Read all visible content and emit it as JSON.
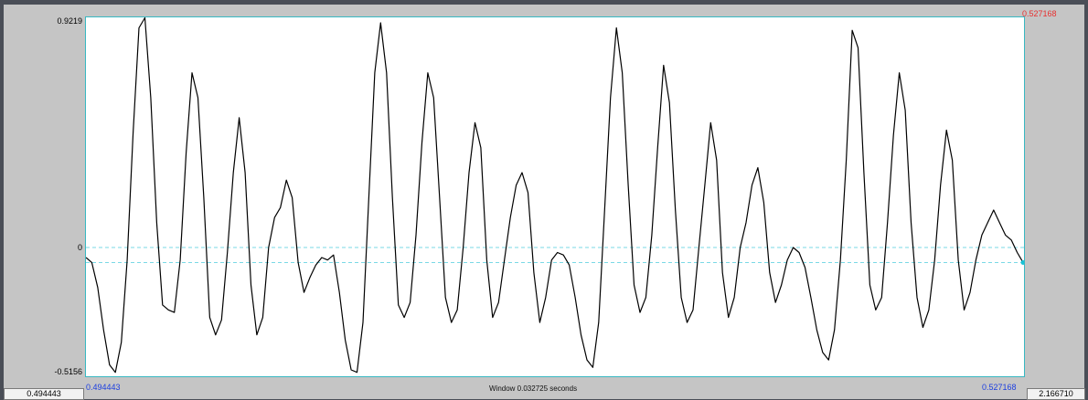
{
  "axis": {
    "y_top": "0.9219",
    "y_zero": "0",
    "y_bottom": "-0.5156"
  },
  "cursor": {
    "value": "0.527168",
    "color": "#e83030",
    "dot_color": "#19c2d6"
  },
  "selection": {
    "start": "0.494443",
    "end": "0.527168"
  },
  "window": {
    "label": "Window 0.032725 seconds"
  },
  "visible_range": {
    "start": "0.494443",
    "end": "2.166710"
  },
  "colors": {
    "background": "#4a4e57",
    "frame": "#c5c5c5",
    "plot_border": "#38b8c2",
    "waveform": "#000000",
    "zero_line": "#7ad9e6",
    "selection_text": "#1d3fe0"
  },
  "waveform": {
    "y_range": [
      -0.5156,
      0.9219
    ],
    "samples": [
      -0.04,
      -0.06,
      -0.16,
      -0.33,
      -0.47,
      -0.5,
      -0.38,
      -0.05,
      0.46,
      0.88,
      0.92,
      0.6,
      0.1,
      -0.23,
      -0.25,
      -0.26,
      -0.05,
      0.38,
      0.7,
      0.6,
      0.2,
      -0.28,
      -0.35,
      -0.29,
      -0.02,
      0.3,
      0.52,
      0.3,
      -0.15,
      -0.35,
      -0.28,
      0.0,
      0.12,
      0.16,
      0.27,
      0.2,
      -0.06,
      -0.18,
      -0.12,
      -0.07,
      -0.04,
      -0.05,
      -0.03,
      -0.18,
      -0.37,
      -0.49,
      -0.5,
      -0.3,
      0.2,
      0.7,
      0.9,
      0.7,
      0.2,
      -0.23,
      -0.28,
      -0.22,
      0.05,
      0.42,
      0.7,
      0.6,
      0.2,
      -0.2,
      -0.3,
      -0.25,
      0.0,
      0.3,
      0.5,
      0.4,
      -0.05,
      -0.28,
      -0.22,
      -0.05,
      0.12,
      0.25,
      0.3,
      0.22,
      -0.1,
      -0.3,
      -0.2,
      -0.05,
      -0.02,
      -0.03,
      -0.07,
      -0.2,
      -0.35,
      -0.45,
      -0.48,
      -0.3,
      0.15,
      0.6,
      0.88,
      0.7,
      0.25,
      -0.15,
      -0.26,
      -0.2,
      0.05,
      0.4,
      0.73,
      0.58,
      0.15,
      -0.2,
      -0.3,
      -0.25,
      0.0,
      0.25,
      0.5,
      0.35,
      -0.1,
      -0.28,
      -0.2,
      0.0,
      0.1,
      0.25,
      0.32,
      0.18,
      -0.1,
      -0.22,
      -0.15,
      -0.05,
      0.0,
      -0.02,
      -0.08,
      -0.2,
      -0.33,
      -0.42,
      -0.45,
      -0.33,
      -0.05,
      0.35,
      0.87,
      0.8,
      0.3,
      -0.15,
      -0.25,
      -0.2,
      0.1,
      0.45,
      0.7,
      0.55,
      0.1,
      -0.2,
      -0.32,
      -0.25,
      -0.05,
      0.25,
      0.47,
      0.35,
      -0.05,
      -0.25,
      -0.18,
      -0.05,
      0.05,
      0.1,
      0.15,
      0.1,
      0.05,
      0.03,
      -0.02,
      -0.06
    ]
  }
}
